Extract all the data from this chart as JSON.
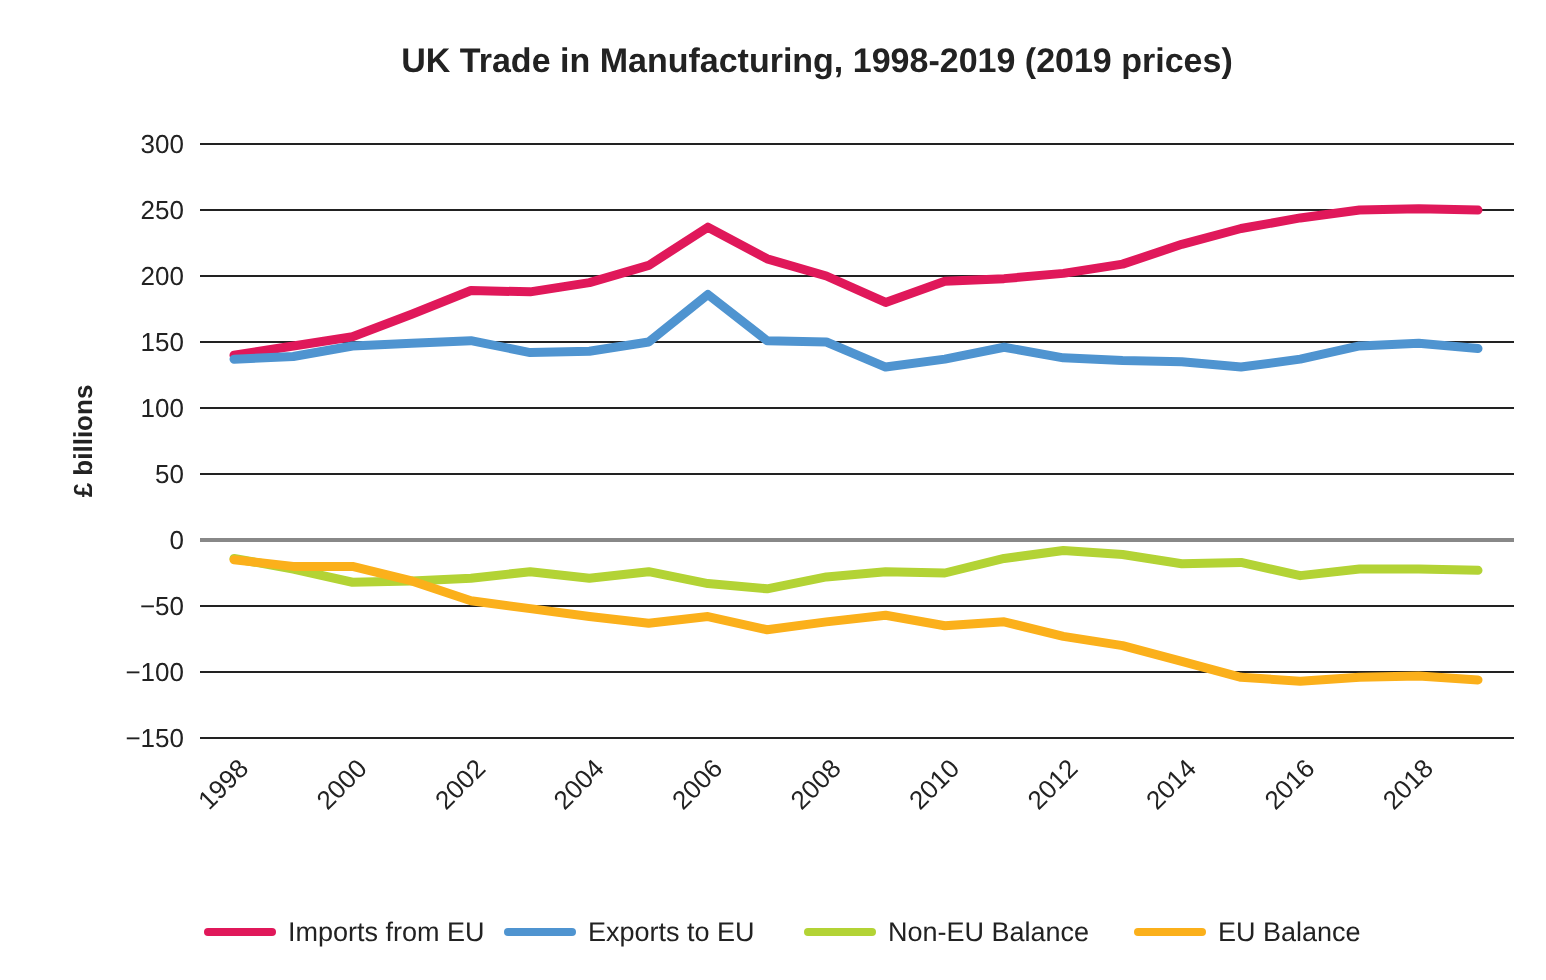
{
  "chart_data": {
    "type": "line",
    "title": "UK Trade in Manufacturing, 1998-2019 (2019 prices)",
    "ylabel": "£ billions",
    "categories": [
      "1998",
      null,
      "2000",
      null,
      "2002",
      null,
      "2004",
      null,
      "2006",
      null,
      "2008",
      null,
      "2010",
      null,
      "2012",
      null,
      "2014",
      null,
      "2016",
      null,
      "2018",
      null
    ],
    "ylim": [
      -150,
      300
    ],
    "yticks": [
      {
        "value": -150,
        "label": "−150"
      },
      {
        "value": -100,
        "label": "−100"
      },
      {
        "value": -50,
        "label": "−50"
      },
      0,
      50,
      100,
      150,
      200,
      250,
      300
    ],
    "grid": "y",
    "legend": "bottom",
    "marker": "none",
    "line_style": "solid",
    "series": [
      {
        "name": "Imports from EU",
        "color": "#e0185a",
        "values": [
          140,
          147,
          154,
          171,
          189,
          188,
          195,
          208,
          237,
          213,
          200,
          180,
          196,
          198,
          202,
          209,
          224,
          236,
          244,
          250,
          251,
          250
        ]
      },
      {
        "name": "Exports to EU",
        "color": "#4f94d0",
        "values": [
          137,
          139,
          147,
          149,
          151,
          142,
          143,
          150,
          186,
          151,
          150,
          131,
          137,
          146,
          138,
          136,
          135,
          131,
          137,
          147,
          149,
          145
        ]
      },
      {
        "name": "Non-EU Balance",
        "color": "#b3d335",
        "values": [
          -14,
          -22,
          -32,
          -31,
          -29,
          -24,
          -29,
          -24,
          -33,
          -37,
          -28,
          -24,
          -25,
          -14,
          -8,
          -11,
          -18,
          -17,
          -27,
          -22,
          -22,
          -23
        ]
      },
      {
        "name": "EU Balance",
        "color": "#fbb01b",
        "values": [
          -15,
          -20,
          -20,
          -31,
          -46,
          -52,
          -58,
          -63,
          -58,
          -68,
          -62,
          -57,
          -65,
          -62,
          -73,
          -80,
          -92,
          -104,
          -107,
          -104,
          -103,
          -106
        ]
      }
    ]
  }
}
